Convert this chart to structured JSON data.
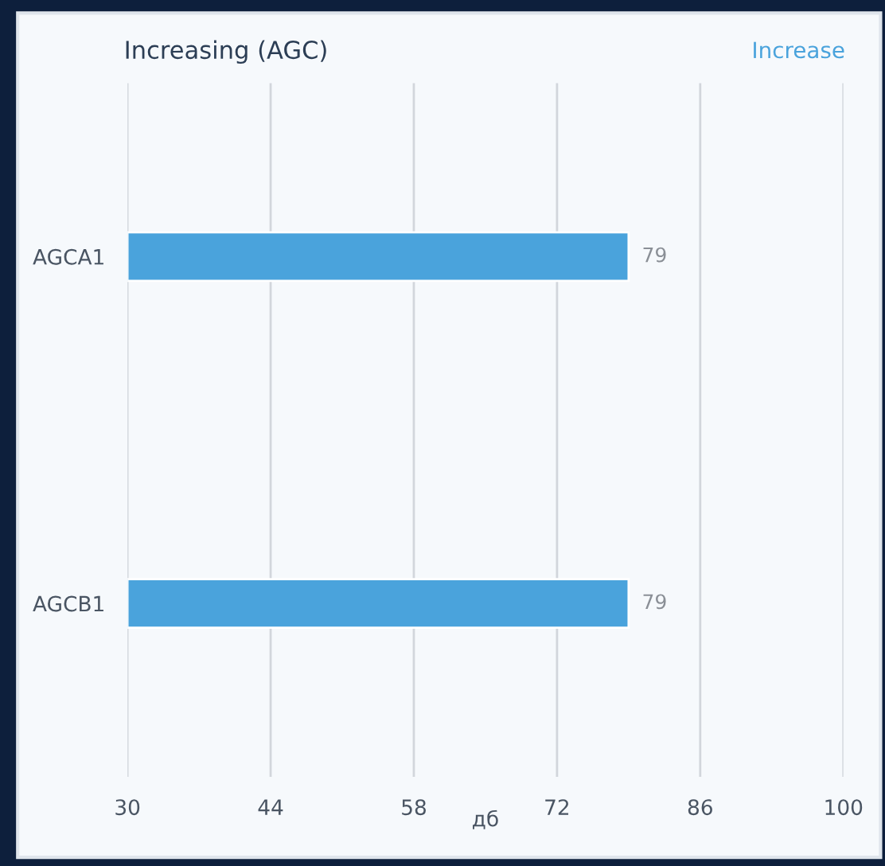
{
  "chart_data": {
    "type": "bar",
    "orientation": "horizontal",
    "title": "Increasing (AGC)",
    "xlabel": "дб",
    "categories": [
      "AGCA1",
      "AGCB1"
    ],
    "series": [
      {
        "name": "Increase",
        "color": "#4aa3dc",
        "values": [
          79,
          79
        ]
      }
    ],
    "data_labels": true,
    "xlim": [
      30,
      100
    ],
    "xticks": [
      30,
      44,
      58,
      72,
      86,
      100
    ],
    "grid": "x",
    "legend": "top right"
  }
}
